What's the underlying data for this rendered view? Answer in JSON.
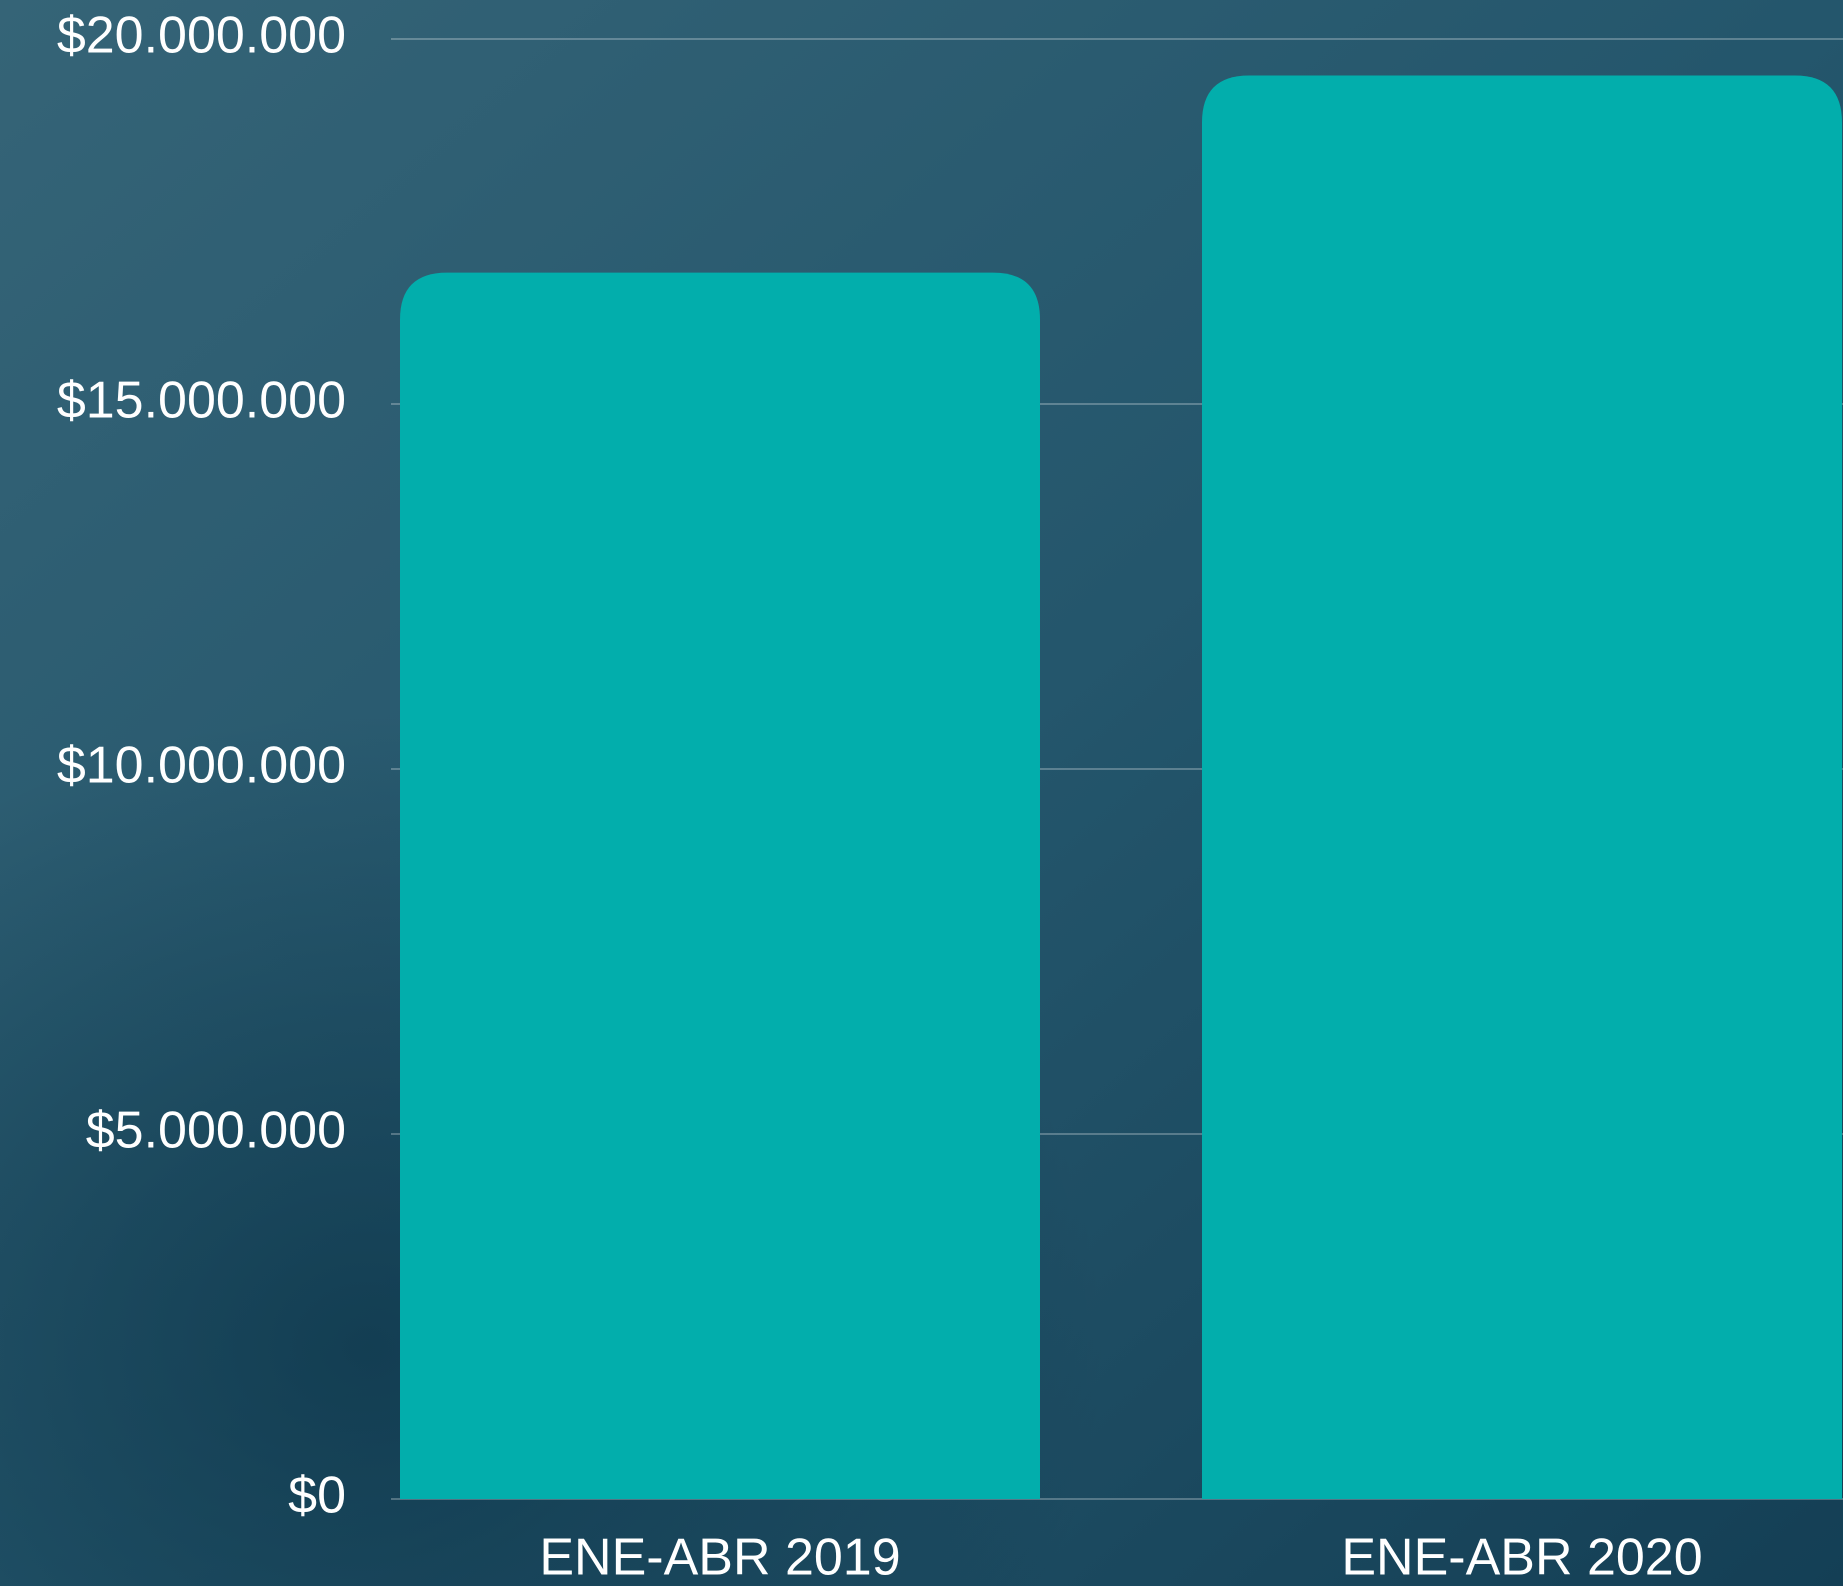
{
  "chart_data": {
    "type": "bar",
    "categories": [
      "ENE-ABR 2019",
      "ENE-ABR 2020"
    ],
    "values": [
      16800000,
      19500000
    ],
    "color": "#02aeac",
    "ylim": [
      0,
      20000000
    ],
    "yticks": [
      {
        "value": 0,
        "label": "$0"
      },
      {
        "value": 5000000,
        "label": "$5.000.000"
      },
      {
        "value": 10000000,
        "label": "$10.000.000"
      },
      {
        "value": 15000000,
        "label": "$15.000.000"
      },
      {
        "value": 20000000,
        "label": "$20.000.000"
      }
    ],
    "grid": true
  }
}
